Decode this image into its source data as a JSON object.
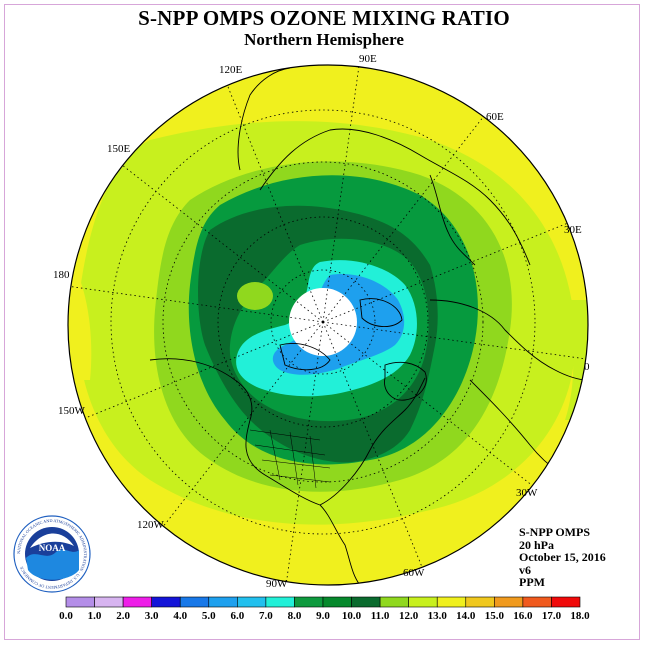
{
  "header": {
    "title": "S-NPP OMPS OZONE MIXING RATIO",
    "subtitle": "Northern Hemisphere"
  },
  "map": {
    "longitude_labels": [
      "90E",
      "60E",
      "30E",
      "0",
      "30W",
      "60W",
      "90W",
      "120W",
      "150W",
      "180",
      "150E",
      "120E"
    ]
  },
  "info": {
    "instrument": "S-NPP OMPS",
    "pressure": "20 hPa",
    "date": "October 15, 2016",
    "version": "v6",
    "units": "PPM"
  },
  "colorbar": {
    "ticks": [
      "0.0",
      "1.0",
      "2.0",
      "3.0",
      "4.0",
      "5.0",
      "6.0",
      "7.0",
      "8.0",
      "9.0",
      "10.0",
      "11.0",
      "12.0",
      "13.0",
      "14.0",
      "15.0",
      "16.0",
      "17.0",
      "18.0"
    ],
    "colors": [
      "#b48ee8",
      "#d7b4f0",
      "#ee1ee8",
      "#1414d8",
      "#1878e8",
      "#1ea0ee",
      "#22c0ee",
      "#22f0d8",
      "#0e9a3e",
      "#06892c",
      "#0a6b2e",
      "#90d81e",
      "#c8f01e",
      "#f0f01e",
      "#f0c81e",
      "#f09a1e",
      "#f05a1e",
      "#f00a0a",
      "#8a5a3a"
    ]
  },
  "logo": {
    "text": "NOAA",
    "ring_text": "NATIONAL OCEANIC AND ATMOSPHERIC ADMINISTRATION · U.S. DEPARTMENT OF COMMERCE"
  }
}
